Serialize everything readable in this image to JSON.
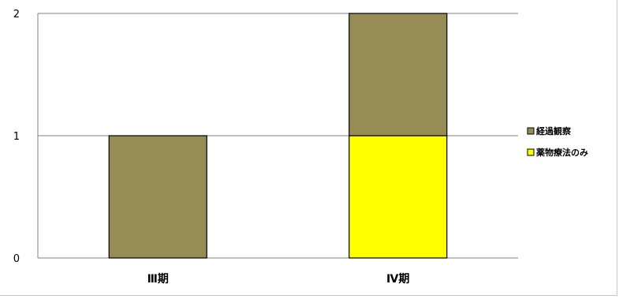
{
  "chart_data": {
    "type": "bar",
    "stacked": true,
    "categories": [
      "Ⅲ期",
      "Ⅳ期"
    ],
    "series": [
      {
        "name": "薬物療法のみ",
        "values": [
          0,
          1
        ],
        "color": "#ffff00"
      },
      {
        "name": "経過観察",
        "values": [
          1,
          1
        ],
        "color": "#968c55"
      }
    ],
    "ylim": [
      0,
      2
    ],
    "yticks": [
      0,
      1,
      2
    ],
    "grid": true,
    "legend_position": "right",
    "legend_order": [
      "経過観察",
      "薬物療法のみ"
    ]
  }
}
